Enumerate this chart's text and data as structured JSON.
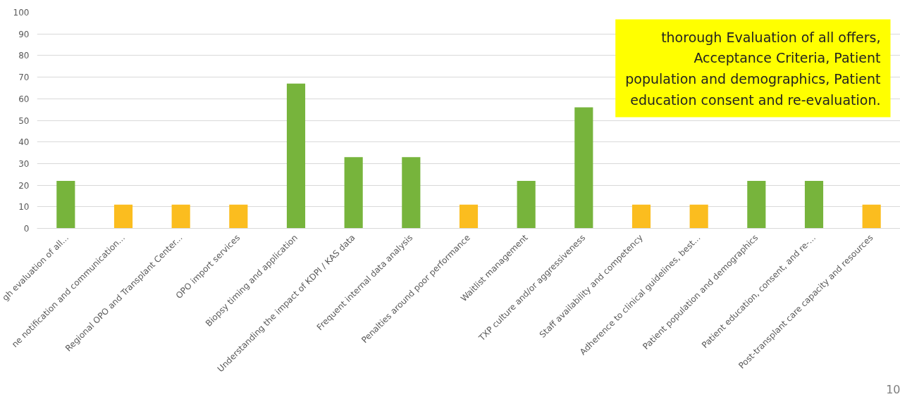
{
  "chart_data": {
    "type": "bar",
    "categories": [
      "gh evaluation of all...",
      "ne notification and communication...",
      "Regional OPO and Transplant Center...",
      "OPO import services",
      "Biopsy timing and application",
      "Understanding the impact of KDPI / KAS data",
      "Frequent internal data analysis",
      "Penalties around poor performance",
      "Waitlist management",
      "TXP culture and/or aggressiveness",
      "Staff availability and competency",
      "Adherence to clinical guidelines, best...",
      "Patient population and demographics",
      "Patient education, consent, and re-...",
      "Post-transplant care capacity and resources"
    ],
    "values": [
      22,
      11,
      11,
      11,
      67,
      33,
      33,
      11,
      22,
      56,
      11,
      11,
      22,
      22,
      11
    ],
    "colors": [
      "#77b43c",
      "#fbbd1f",
      "#fbbd1f",
      "#fbbd1f",
      "#77b43c",
      "#77b43c",
      "#77b43c",
      "#fbbd1f",
      "#77b43c",
      "#77b43c",
      "#fbbd1f",
      "#fbbd1f",
      "#77b43c",
      "#77b43c",
      "#fbbd1f"
    ],
    "ylim": [
      0,
      100
    ],
    "yticks": [
      0,
      10,
      20,
      30,
      40,
      50,
      60,
      70,
      80,
      90,
      100
    ],
    "grid": "y",
    "annotations": [
      "thorough Evaluation of all offers, Acceptance Criteria, Patient population and demographics, Patient education consent and re-evaluation.",
      "10"
    ]
  }
}
